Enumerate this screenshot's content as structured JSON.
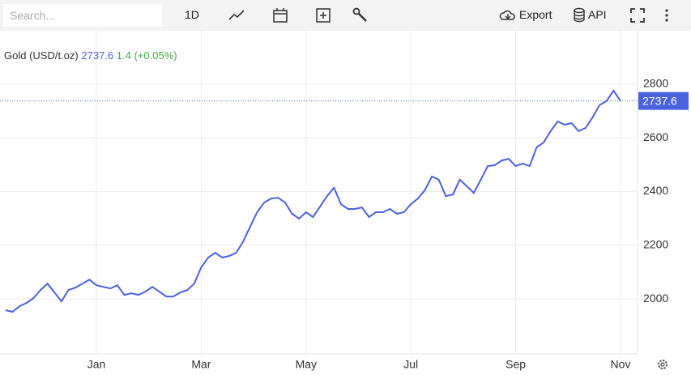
{
  "toolbar": {
    "search_placeholder": "Search...",
    "interval": "1D",
    "export": "Export",
    "api": "API"
  },
  "header": {
    "name": "Gold (USD/t.oz)",
    "change": "1.4",
    "change_pct": "(+0.05%)"
  },
  "chart_data": {
    "type": "line",
    "last_price": 2737.6,
    "x": [
      null,
      null,
      null,
      null,
      null,
      null,
      null,
      null,
      null,
      null,
      null,
      null,
      null,
      "Jan",
      null,
      null,
      null,
      null,
      null,
      null,
      null,
      null,
      null,
      null,
      null,
      null,
      null,
      null,
      "Mar",
      null,
      null,
      null,
      null,
      null,
      null,
      null,
      null,
      null,
      null,
      null,
      null,
      null,
      null,
      "May",
      null,
      null,
      null,
      null,
      null,
      null,
      null,
      null,
      null,
      null,
      null,
      null,
      null,
      null,
      "Jul",
      null,
      null,
      null,
      null,
      null,
      null,
      null,
      null,
      null,
      null,
      null,
      null,
      null,
      null,
      "Sep",
      null,
      null,
      null,
      null,
      null,
      null,
      null,
      null,
      null,
      null,
      null,
      null,
      null,
      null,
      "Nov"
    ],
    "series": [
      {
        "name": "Gold",
        "color": "#4a62e0",
        "values": [
          1958,
          1952,
          1973,
          1985,
          2003,
          2033,
          2057,
          2024,
          1991,
          2033,
          2042,
          2057,
          2072,
          2051,
          2045,
          2039,
          2051,
          2015,
          2021,
          2015,
          2027,
          2045,
          2027,
          2009,
          2009,
          2024,
          2033,
          2057,
          2118,
          2154,
          2172,
          2154,
          2160,
          2172,
          2214,
          2269,
          2323,
          2359,
          2374,
          2377,
          2359,
          2317,
          2299,
          2323,
          2305,
          2344,
          2383,
          2414,
          2353,
          2335,
          2335,
          2341,
          2305,
          2323,
          2323,
          2335,
          2317,
          2323,
          2353,
          2374,
          2405,
          2456,
          2444,
          2383,
          2389,
          2444,
          2420,
          2395,
          2444,
          2495,
          2498,
          2516,
          2522,
          2495,
          2504,
          2495,
          2565,
          2583,
          2625,
          2661,
          2649,
          2655,
          2625,
          2637,
          2676,
          2722,
          2737,
          2776,
          2737.6
        ]
      }
    ],
    "ylim": [
      1795,
      2999
    ],
    "yticks": [
      2000,
      2200,
      2400,
      2600,
      2800
    ],
    "grid": true
  }
}
